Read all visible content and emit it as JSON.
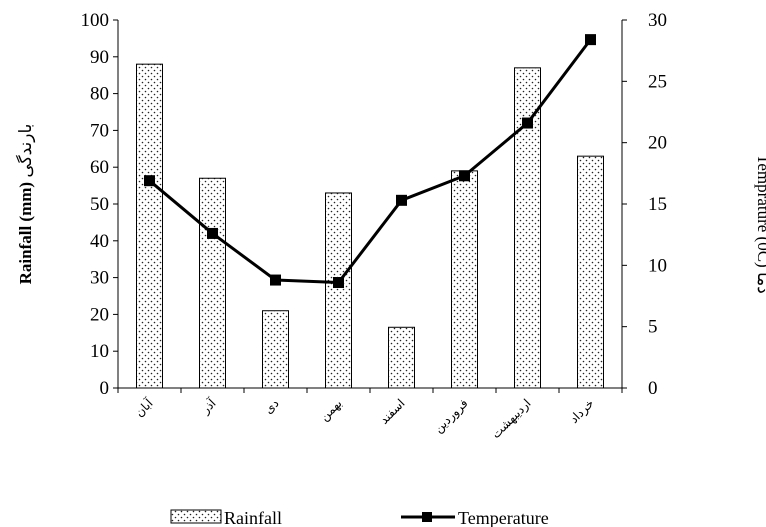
{
  "chart_data": {
    "type": "bar",
    "categories": [
      "آبان",
      "آذر",
      "دی",
      "بهمن",
      "اسفند",
      "فروردین",
      "اردیبهشت",
      "خرداد"
    ],
    "series": [
      {
        "name": "Rainfall",
        "kind": "bar",
        "axis": "left",
        "values": [
          88,
          57,
          21,
          53,
          16.5,
          59,
          87,
          63
        ]
      },
      {
        "name": "Temperature",
        "kind": "line",
        "axis": "right",
        "values": [
          16.9,
          12.6,
          8.8,
          8.6,
          15.3,
          17.3,
          21.6,
          28.4
        ]
      }
    ],
    "ylabel": {
      "english": "Rainfall (mm)",
      "persian": "بارندگی"
    },
    "y2label": {
      "english": "Temprature (0C)",
      "persian": "دما"
    },
    "ylim": [
      0,
      100
    ],
    "yticks": [
      0,
      10,
      20,
      30,
      40,
      50,
      60,
      70,
      80,
      90,
      100
    ],
    "y2lim": [
      0,
      30
    ],
    "y2ticks": [
      0,
      5,
      10,
      15,
      20,
      25,
      30
    ],
    "grid": false,
    "legend_position": "bottom",
    "bar_pattern": "dotted",
    "line_color": "#000000",
    "marker": "square"
  }
}
